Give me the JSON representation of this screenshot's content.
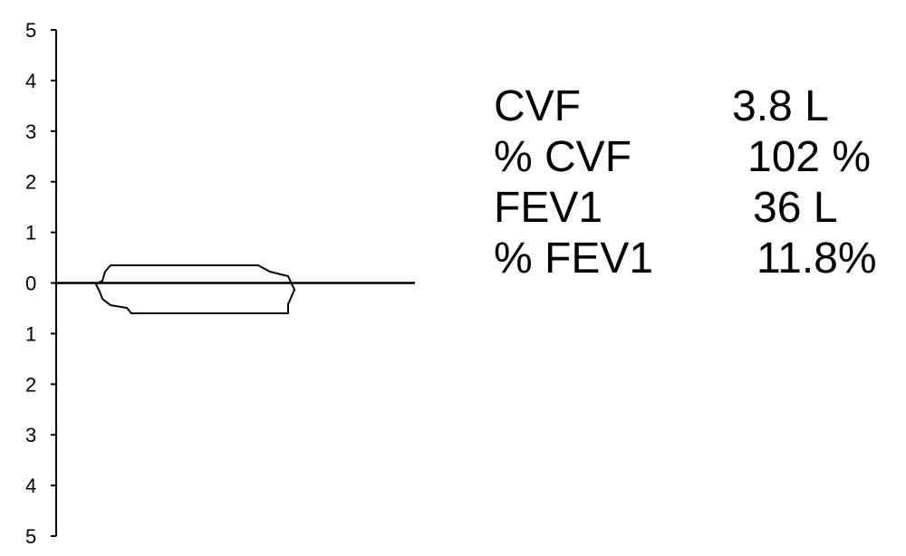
{
  "chart_data": {
    "type": "line",
    "title": "",
    "xlabel": "",
    "ylabel": "",
    "ylim": [
      -5,
      5
    ],
    "y_tick_labels": [
      "5",
      "4",
      "3",
      "2",
      "1",
      "0",
      "1",
      "2",
      "3",
      "4",
      "5"
    ],
    "y_tick_values": [
      5,
      4,
      3,
      2,
      1,
      0,
      -1,
      -2,
      -3,
      -4,
      -5
    ],
    "grid": false,
    "baseline_y": 0,
    "loop_colors": {
      "line": "#000000",
      "background": "#ffffff"
    }
  },
  "results": [
    {
      "label": "CVF",
      "value": "3.8 L"
    },
    {
      "label": "% CVF",
      "value": "102 %"
    },
    {
      "label": "FEV1",
      "value": "36 L"
    },
    {
      "label": "% FEV1",
      "value": "11.8%"
    }
  ]
}
